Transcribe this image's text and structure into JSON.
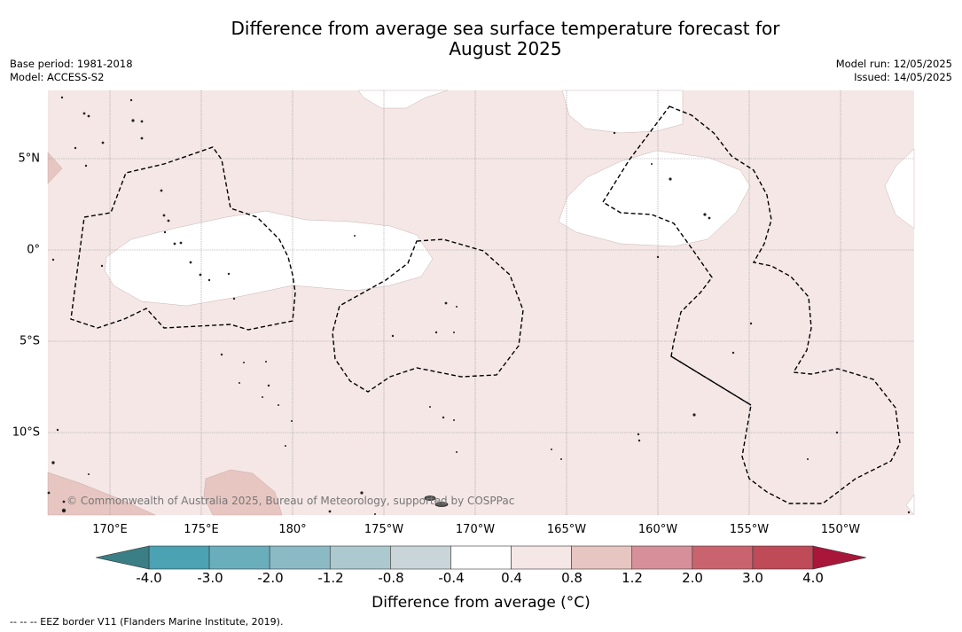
{
  "title": {
    "line1": "Difference from average sea surface temperature forecast for",
    "line2": "August 2025"
  },
  "meta_left": {
    "base_period": "Base period: 1981-2018",
    "model": "Model: ACCESS-S2"
  },
  "meta_right": {
    "model_run": "Model run: 12/05/2025",
    "issued": "Issued: 14/05/2025"
  },
  "lon_labels": [
    "170°E",
    "175°E",
    "180°",
    "175°W",
    "170°W",
    "165°W",
    "160°W",
    "155°W",
    "150°W"
  ],
  "lat_labels": [
    "5°N",
    "0°",
    "5°S",
    "10°S"
  ],
  "copyright": "© Commonwealth of Australia 2025, Bureau of Meteorology, supported by COSPPac",
  "colorbar": {
    "ticks": [
      "-4.0",
      "-3.0",
      "-2.0",
      "-1.2",
      "-0.8",
      "-0.4",
      "0.4",
      "0.8",
      "1.2",
      "2.0",
      "3.0",
      "4.0"
    ],
    "colors": [
      "#4aa2b3",
      "#6aaebc",
      "#8bbac5",
      "#abc9ce",
      "#c9d5d8",
      "#ffffff",
      "#f4e7e6",
      "#e7c6c1",
      "#d6909a",
      "#c9646f",
      "#bf4a58"
    ],
    "low_extend_color": "#3a7f85",
    "high_extend_color": "#a8173a",
    "label": "Difference from average (°C)"
  },
  "footer": "--  --  -- EEZ border V11 (Flanders Marine Institute, 2019).",
  "map_colors": {
    "background": "#f4e7e6",
    "neutral": "#ffffff",
    "warm": "#e7c6c1",
    "grid": "#999999"
  }
}
